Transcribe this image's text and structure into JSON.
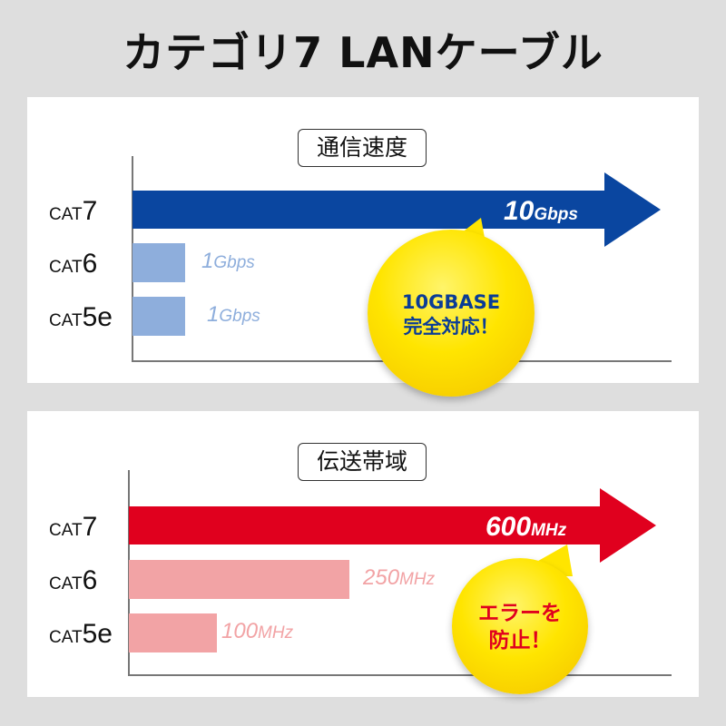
{
  "title": "カテゴリ7 LANケーブル",
  "chart_data": [
    {
      "type": "bar",
      "title": "通信速度",
      "categories": [
        "CAT7",
        "CAT6",
        "CAT5e"
      ],
      "cat_main": [
        "CAT",
        "CAT",
        "CAT"
      ],
      "cat_num": [
        "7",
        "6",
        "5e"
      ],
      "values": [
        10,
        1,
        1
      ],
      "unit": "Gbps",
      "labels": [
        {
          "num": "10",
          "unit": "Gbps"
        },
        {
          "num": "1",
          "unit": "Gbps"
        },
        {
          "num": "1",
          "unit": "Gbps"
        }
      ],
      "colors": [
        "#0a46a0",
        "#8eaedc",
        "#8eaedc"
      ],
      "callout": [
        "10GBASE",
        "完全対応！"
      ],
      "callout_color": "#0a3c96"
    },
    {
      "type": "bar",
      "title": "伝送帯域",
      "categories": [
        "CAT7",
        "CAT6",
        "CAT5e"
      ],
      "cat_main": [
        "CAT",
        "CAT",
        "CAT"
      ],
      "cat_num": [
        "7",
        "6",
        "5e"
      ],
      "values": [
        600,
        250,
        100
      ],
      "unit": "MHz",
      "labels": [
        {
          "num": "600",
          "unit": "MHz"
        },
        {
          "num": "250",
          "unit": "MHz"
        },
        {
          "num": "100",
          "unit": "MHz"
        }
      ],
      "colors": [
        "#e0001e",
        "#f2a3a5",
        "#f2a3a5"
      ],
      "callout": [
        "エラーを",
        "防止！"
      ],
      "callout_color": "#e0001e"
    }
  ]
}
